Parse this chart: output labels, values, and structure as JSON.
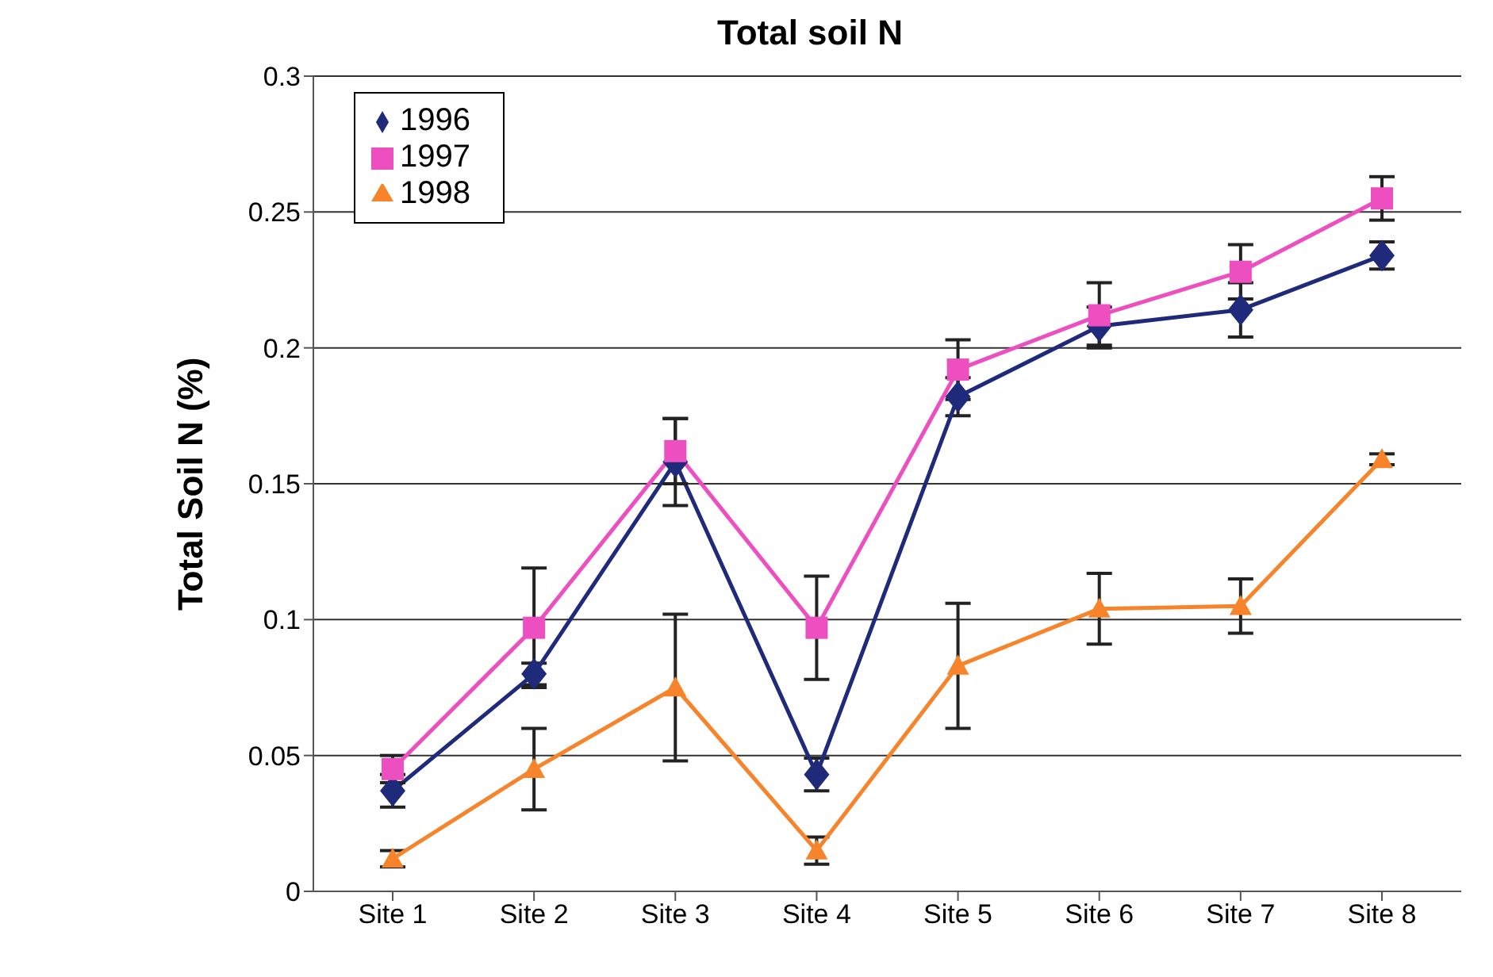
{
  "chart_data": {
    "type": "line",
    "title": "Total soil N",
    "ylabel": "Total Soil N (%)",
    "categories": [
      "Site 1",
      "Site 2",
      "Site 3",
      "Site 4",
      "Site 5",
      "Site 6",
      "Site 7",
      "Site 8"
    ],
    "ylim": [
      0,
      0.3
    ],
    "yticks": [
      0,
      0.05,
      0.1,
      0.15,
      0.2,
      0.25,
      0.3
    ],
    "grid": "y",
    "legend": "top left",
    "series": [
      {
        "name": "1996",
        "color": "#1f2a7a",
        "marker": "diamond",
        "values": [
          0.037,
          0.08,
          0.158,
          0.043,
          0.182,
          0.208,
          0.214,
          0.234
        ],
        "errors": [
          0.006,
          0.004,
          0.016,
          0.006,
          0.007,
          0.007,
          0.01,
          0.005
        ]
      },
      {
        "name": "1997",
        "color": "#ee4fc0",
        "marker": "square",
        "values": [
          0.045,
          0.097,
          0.162,
          0.097,
          0.192,
          0.212,
          0.228,
          0.255
        ],
        "errors": [
          0.005,
          0.022,
          0.012,
          0.019,
          0.011,
          0.012,
          0.01,
          0.008
        ]
      },
      {
        "name": "1998",
        "color": "#f7842a",
        "marker": "triangle",
        "values": [
          0.012,
          0.045,
          0.075,
          0.015,
          0.083,
          0.104,
          0.105,
          0.159
        ],
        "errors": [
          0.003,
          0.015,
          0.027,
          0.005,
          0.023,
          0.013,
          0.01,
          0.002
        ]
      }
    ]
  }
}
